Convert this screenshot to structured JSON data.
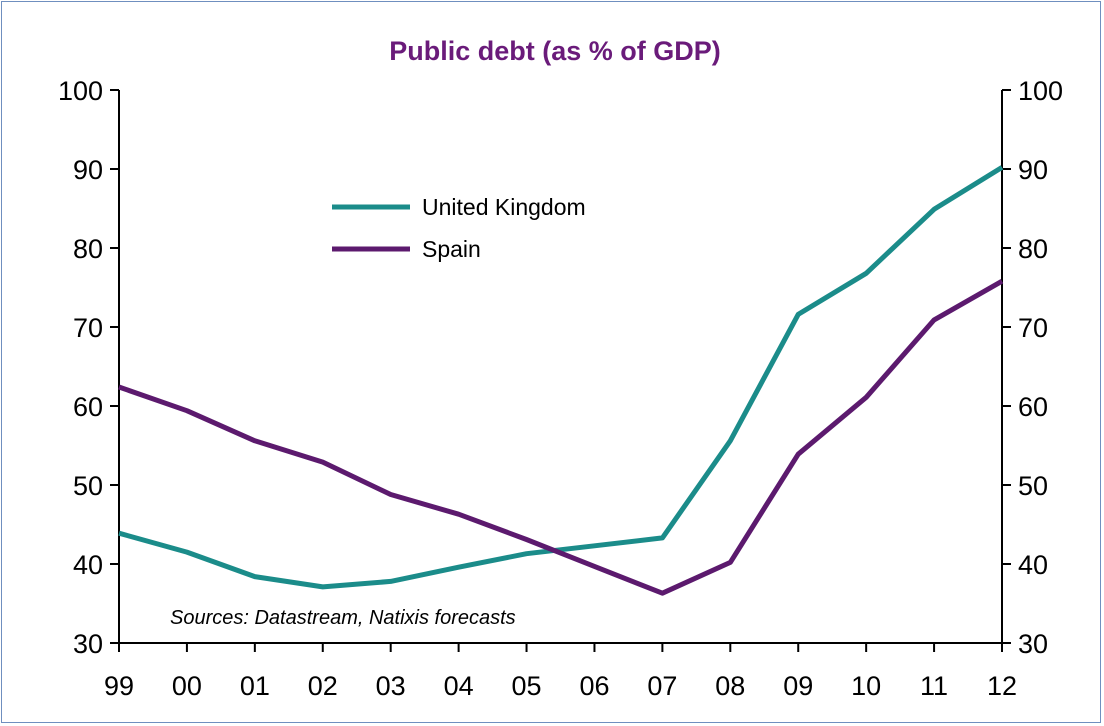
{
  "colors": {
    "title": "#6a1b7a",
    "united_kingdom": "#1b8c8a",
    "spain": "#5c1a6e",
    "axis": "#000000",
    "frame": "#6f8fbf"
  },
  "chart_data": {
    "type": "line",
    "title": "Public debt (as % of GDP)",
    "source_note": "Sources: Datastream, Natixis forecasts",
    "categories": [
      "99",
      "00",
      "01",
      "02",
      "03",
      "04",
      "05",
      "06",
      "07",
      "08",
      "09",
      "10",
      "11",
      "12"
    ],
    "ylim": [
      30,
      100
    ],
    "y_ticks": [
      "30",
      "40",
      "50",
      "60",
      "70",
      "80",
      "90",
      "100"
    ],
    "secondary_ylim": [
      30,
      100
    ],
    "grid": false,
    "legend_position": "upper-left-inside",
    "series": [
      {
        "name": "United Kingdom",
        "color": "#1b8c8a",
        "values": [
          43.9,
          41.5,
          38.4,
          37.1,
          37.8,
          39.6,
          41.3,
          42.3,
          43.3,
          55.6,
          71.6,
          76.8,
          84.9,
          90.2
        ]
      },
      {
        "name": "Spain",
        "color": "#5c1a6e",
        "values": [
          62.4,
          59.4,
          55.6,
          52.9,
          48.8,
          46.3,
          43.1,
          39.7,
          36.3,
          40.2,
          53.9,
          61.1,
          70.9,
          75.8
        ]
      }
    ]
  }
}
